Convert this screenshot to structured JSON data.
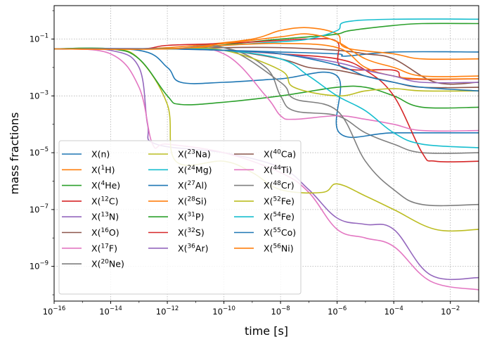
{
  "chart_data": {
    "type": "line",
    "title": "",
    "xlabel": "time [s]",
    "ylabel": "mass fractions",
    "xscale": "log",
    "yscale": "log",
    "xlim": [
      1e-16,
      0.1
    ],
    "ylim": [
      6e-11,
      1.5
    ],
    "grid": true,
    "legend_placement": "lower-left",
    "legend_columns": 3,
    "x_ticks": [
      {
        "value": 1e-16,
        "base": "10",
        "exp": "−16"
      },
      {
        "value": 1e-14,
        "base": "10",
        "exp": "−14"
      },
      {
        "value": 1e-12,
        "base": "10",
        "exp": "−12"
      },
      {
        "value": 1e-10,
        "base": "10",
        "exp": "−10"
      },
      {
        "value": 1e-08,
        "base": "10",
        "exp": "−8"
      },
      {
        "value": 1e-06,
        "base": "10",
        "exp": "−6"
      },
      {
        "value": 0.0001,
        "base": "10",
        "exp": "−4"
      },
      {
        "value": 0.01,
        "base": "10",
        "exp": "−2"
      }
    ],
    "y_ticks": [
      {
        "value": 1e-09,
        "base": "10",
        "exp": "−9"
      },
      {
        "value": 1e-07,
        "base": "10",
        "exp": "−7"
      },
      {
        "value": 1e-05,
        "base": "10",
        "exp": "−5"
      },
      {
        "value": 0.001,
        "base": "10",
        "exp": "−3"
      },
      {
        "value": 0.1,
        "base": "10",
        "exp": "−1"
      }
    ],
    "series": [
      {
        "name": "X(n)",
        "base": "X(",
        "iso": "",
        "sym": "n)",
        "color": "#1f77b4",
        "points": [
          [
            1e-16,
            0.045
          ],
          [
            1e-14,
            0.045
          ],
          [
            1e-12,
            0.045
          ],
          [
            1e-10,
            0.04
          ],
          [
            1e-08,
            0.035
          ],
          [
            1e-06,
            0.03
          ],
          [
            2e-06,
            0.025
          ],
          [
            0.0001,
            0.035
          ],
          [
            0.1,
            0.035
          ]
        ]
      },
      {
        "name": "X(1H)",
        "base": "X(",
        "iso": "1",
        "sym": "H)",
        "color": "#ff7f0e",
        "points": [
          [
            1e-16,
            0.045
          ],
          [
            1e-13,
            0.045
          ],
          [
            1e-11,
            0.06
          ],
          [
            1e-09,
            0.1
          ],
          [
            1e-08,
            0.2
          ],
          [
            1e-07,
            0.25
          ],
          [
            1e-06,
            0.15
          ],
          [
            2e-06,
            0.05
          ],
          [
            0.0001,
            0.03
          ],
          [
            0.001,
            0.02
          ],
          [
            0.1,
            0.02
          ]
        ]
      },
      {
        "name": "X(4He)",
        "base": "X(",
        "iso": "4",
        "sym": "He)",
        "color": "#2ca02c",
        "points": [
          [
            1e-16,
            0.045
          ],
          [
            1e-13,
            0.045
          ],
          [
            1e-11,
            0.05
          ],
          [
            1e-09,
            0.08
          ],
          [
            1e-08,
            0.1
          ],
          [
            1e-07,
            0.12
          ],
          [
            1e-06,
            0.15
          ],
          [
            3e-06,
            0.2
          ],
          [
            0.0001,
            0.3
          ],
          [
            0.001,
            0.35
          ],
          [
            0.1,
            0.35
          ]
        ]
      },
      {
        "name": "X(12C)",
        "base": "X(",
        "iso": "12",
        "sym": "C)",
        "color": "#d62728",
        "points": [
          [
            1e-16,
            0.045
          ],
          [
            1e-13,
            0.045
          ],
          [
            1e-12,
            0.06
          ],
          [
            1e-10,
            0.07
          ],
          [
            1e-08,
            0.09
          ],
          [
            1e-07,
            0.1
          ],
          [
            1e-06,
            0.08
          ],
          [
            1.5e-06,
            0.01
          ],
          [
            0.0001,
            0.008
          ],
          [
            0.0003,
            0.004
          ],
          [
            0.1,
            0.004
          ]
        ]
      },
      {
        "name": "X(13N)",
        "base": "X(",
        "iso": "13",
        "sym": "N)",
        "color": "#9467bd",
        "points": [
          [
            1e-16,
            0.045
          ],
          [
            1e-14,
            0.04
          ],
          [
            1e-13,
            0.01
          ],
          [
            2e-13,
            0.0001
          ],
          [
            4e-13,
            2e-05
          ],
          [
            1e-10,
            1e-05
          ],
          [
            1e-08,
            3e-06
          ],
          [
            1e-07,
            5e-07
          ],
          [
            1e-06,
            5e-08
          ],
          [
            1e-05,
            3e-08
          ],
          [
            0.0001,
            2e-08
          ],
          [
            0.002,
            5e-10
          ],
          [
            0.1,
            4e-10
          ]
        ]
      },
      {
        "name": "X(16O)",
        "base": "X(",
        "iso": "16",
        "sym": "O)",
        "color": "#8c564b",
        "points": [
          [
            1e-16,
            0.045
          ],
          [
            1e-12,
            0.045
          ],
          [
            1e-10,
            0.05
          ],
          [
            1e-08,
            0.05
          ],
          [
            1e-06,
            0.04
          ],
          [
            1e-05,
            0.03
          ],
          [
            0.0001,
            0.02
          ],
          [
            0.003,
            0.003
          ],
          [
            0.1,
            0.003
          ]
        ]
      },
      {
        "name": "X(17F)",
        "base": "X(",
        "iso": "17",
        "sym": "F)",
        "color": "#e377c2",
        "points": [
          [
            1e-16,
            0.045
          ],
          [
            1e-14,
            0.03
          ],
          [
            1e-13,
            0.002
          ],
          [
            3e-13,
            2e-05
          ],
          [
            1e-12,
            2e-05
          ],
          [
            1e-10,
            1e-05
          ],
          [
            1e-08,
            2e-06
          ],
          [
            1e-07,
            4e-07
          ],
          [
            1e-06,
            2e-08
          ],
          [
            1e-05,
            1e-08
          ],
          [
            0.0001,
            5e-09
          ],
          [
            0.002,
            3e-10
          ],
          [
            0.1,
            1.5e-10
          ]
        ]
      },
      {
        "name": "X(20Ne)",
        "base": "X(",
        "iso": "20",
        "sym": "Ne)",
        "color": "#7f7f7f",
        "points": [
          [
            1e-16,
            0.045
          ],
          [
            1e-12,
            0.045
          ],
          [
            1e-10,
            0.05
          ],
          [
            3e-09,
            0.01
          ],
          [
            1e-08,
            0.001
          ],
          [
            3e-08,
            0.0003
          ],
          [
            1e-06,
            0.0002
          ],
          [
            1e-05,
            5e-05
          ],
          [
            0.0001,
            2e-05
          ],
          [
            0.001,
            1e-05
          ],
          [
            0.1,
            1e-05
          ]
        ]
      },
      {
        "name": "X(23Na)",
        "base": "X(",
        "iso": "23",
        "sym": "Na)",
        "color": "#bcbd22",
        "points": [
          [
            1e-16,
            0.045
          ],
          [
            1e-14,
            0.045
          ],
          [
            1e-13,
            0.02
          ],
          [
            1e-12,
            0.0005
          ],
          [
            2e-12,
            5e-06
          ],
          [
            1e-10,
            5e-06
          ],
          [
            1e-09,
            2e-06
          ],
          [
            1e-08,
            5e-07
          ],
          [
            3e-07,
            4e-07
          ],
          [
            1e-06,
            8e-07
          ],
          [
            1e-05,
            3e-07
          ],
          [
            0.0001,
            1e-07
          ],
          [
            0.003,
            2e-08
          ],
          [
            0.1,
            2e-08
          ]
        ]
      },
      {
        "name": "X(24Mg)",
        "base": "X(",
        "iso": "24",
        "sym": "Mg)",
        "color": "#17becf",
        "points": [
          [
            1e-16,
            0.045
          ],
          [
            1e-12,
            0.045
          ],
          [
            1e-10,
            0.06
          ],
          [
            1e-08,
            0.08
          ],
          [
            1e-07,
            0.1
          ],
          [
            1e-06,
            0.2
          ],
          [
            2e-06,
            0.4
          ],
          [
            0.0001,
            0.5
          ],
          [
            0.1,
            0.5
          ]
        ]
      },
      {
        "name": "X(27Al)",
        "base": "X(",
        "iso": "27",
        "sym": "Al)",
        "color": "#1f77b4",
        "points": [
          [
            1e-16,
            0.045
          ],
          [
            1e-13,
            0.04
          ],
          [
            1e-12,
            0.01
          ],
          [
            3e-12,
            0.003
          ],
          [
            1e-10,
            0.003
          ],
          [
            1e-08,
            0.004
          ],
          [
            1e-06,
            0.005
          ],
          [
            1.2e-06,
            5e-05
          ],
          [
            0.0001,
            5e-05
          ],
          [
            0.1,
            5e-05
          ]
        ]
      },
      {
        "name": "X(28Si)",
        "base": "X(",
        "iso": "28",
        "sym": "Si)",
        "color": "#ff7f0e",
        "points": [
          [
            1e-16,
            0.045
          ],
          [
            1e-12,
            0.045
          ],
          [
            1e-10,
            0.06
          ],
          [
            1e-08,
            0.07
          ],
          [
            1e-06,
            0.05
          ],
          [
            1e-05,
            0.01
          ],
          [
            0.0001,
            0.005
          ],
          [
            0.001,
            0.004
          ],
          [
            0.1,
            0.004
          ]
        ]
      },
      {
        "name": "X(31P)",
        "base": "X(",
        "iso": "31",
        "sym": "P)",
        "color": "#2ca02c",
        "points": [
          [
            1e-16,
            0.045
          ],
          [
            1e-14,
            0.045
          ],
          [
            1e-13,
            0.02
          ],
          [
            1e-12,
            0.001
          ],
          [
            3e-12,
            0.0005
          ],
          [
            1e-10,
            0.0006
          ],
          [
            1e-08,
            0.001
          ],
          [
            1e-06,
            0.002
          ],
          [
            1e-05,
            0.002
          ],
          [
            0.0001,
            0.001
          ],
          [
            0.001,
            0.0004
          ],
          [
            0.1,
            0.0004
          ]
        ]
      },
      {
        "name": "X(32S)",
        "base": "X(",
        "iso": "32",
        "sym": "S)",
        "color": "#d62728",
        "points": [
          [
            1e-16,
            0.045
          ],
          [
            1e-12,
            0.045
          ],
          [
            1e-10,
            0.04
          ],
          [
            1e-08,
            0.03
          ],
          [
            1e-06,
            0.02
          ],
          [
            1e-05,
            0.008
          ],
          [
            0.0001,
            0.001
          ],
          [
            0.001,
            1e-05
          ],
          [
            0.003,
            5e-06
          ],
          [
            0.1,
            5e-06
          ]
        ]
      },
      {
        "name": "X(36Ar)",
        "base": "X(",
        "iso": "36",
        "sym": "Ar)",
        "color": "#9467bd",
        "points": [
          [
            1e-16,
            0.045
          ],
          [
            1e-12,
            0.045
          ],
          [
            1e-10,
            0.04
          ],
          [
            1e-08,
            0.03
          ],
          [
            1e-06,
            0.015
          ],
          [
            1e-05,
            0.008
          ],
          [
            0.0001,
            0.005
          ],
          [
            0.001,
            0.003
          ],
          [
            0.1,
            0.003
          ]
        ]
      },
      {
        "name": "X(40Ca)",
        "base": "X(",
        "iso": "40",
        "sym": "Ca)",
        "color": "#8c564b",
        "points": [
          [
            1e-16,
            0.045
          ],
          [
            1e-12,
            0.045
          ],
          [
            1e-10,
            0.04
          ],
          [
            1e-08,
            0.02
          ],
          [
            1e-07,
            0.01
          ],
          [
            1e-06,
            0.008
          ],
          [
            1e-05,
            0.005
          ],
          [
            0.0001,
            0.003
          ],
          [
            0.001,
            0.002
          ],
          [
            0.1,
            0.002
          ]
        ]
      },
      {
        "name": "X(44Ti)",
        "base": "X(",
        "iso": "44",
        "sym": "Ti)",
        "color": "#e377c2",
        "points": [
          [
            1e-16,
            0.045
          ],
          [
            1e-12,
            0.045
          ],
          [
            1e-10,
            0.03
          ],
          [
            3e-09,
            0.001
          ],
          [
            1e-08,
            0.0002
          ],
          [
            3e-08,
            0.00015
          ],
          [
            1e-06,
            0.0002
          ],
          [
            1e-05,
            0.00015
          ],
          [
            0.0001,
            0.0001
          ],
          [
            0.001,
            6e-05
          ],
          [
            0.1,
            6e-05
          ]
        ]
      },
      {
        "name": "X(48Cr)",
        "base": "X(",
        "iso": "48",
        "sym": "Cr)",
        "color": "#7f7f7f",
        "points": [
          [
            1e-16,
            0.045
          ],
          [
            1e-12,
            0.045
          ],
          [
            1e-10,
            0.05
          ],
          [
            1e-08,
            0.003
          ],
          [
            3e-08,
            0.0008
          ],
          [
            1e-06,
            0.0003
          ],
          [
            1e-05,
            5e-06
          ],
          [
            0.0001,
            5e-07
          ],
          [
            0.001,
            1.5e-07
          ],
          [
            0.1,
            1.5e-07
          ]
        ]
      },
      {
        "name": "X(52Fe)",
        "base": "X(",
        "iso": "52",
        "sym": "Fe)",
        "color": "#bcbd22",
        "points": [
          [
            1e-16,
            0.045
          ],
          [
            1e-12,
            0.045
          ],
          [
            1e-10,
            0.04
          ],
          [
            1e-08,
            0.008
          ],
          [
            3e-08,
            0.002
          ],
          [
            1e-06,
            0.001
          ],
          [
            1e-05,
            0.0015
          ],
          [
            0.0001,
            0.0018
          ],
          [
            0.001,
            0.0015
          ],
          [
            0.1,
            0.0015
          ]
        ]
      },
      {
        "name": "X(54Fe)",
        "base": "X(",
        "iso": "54",
        "sym": "Fe)",
        "color": "#17becf",
        "points": [
          [
            1e-16,
            0.045
          ],
          [
            1e-12,
            0.045
          ],
          [
            1e-10,
            0.04
          ],
          [
            1e-08,
            0.02
          ],
          [
            1e-07,
            0.005
          ],
          [
            1e-06,
            0.001
          ],
          [
            1e-05,
            0.0003
          ],
          [
            0.0001,
            5e-05
          ],
          [
            0.001,
            2e-05
          ],
          [
            0.1,
            1.5e-05
          ]
        ]
      },
      {
        "name": "X(55Co)",
        "base": "X(",
        "iso": "55",
        "sym": "Co)",
        "color": "#1f77b4",
        "points": [
          [
            1e-16,
            0.045
          ],
          [
            1e-12,
            0.045
          ],
          [
            1e-10,
            0.04
          ],
          [
            1e-08,
            0.03
          ],
          [
            1e-06,
            0.012
          ],
          [
            1e-05,
            0.005
          ],
          [
            0.0001,
            0.003
          ],
          [
            0.001,
            0.002
          ],
          [
            0.1,
            0.0015
          ]
        ]
      },
      {
        "name": "X(56Ni)",
        "base": "X(",
        "iso": "56",
        "sym": "Ni)",
        "color": "#ff7f0e",
        "points": [
          [
            1e-16,
            0.045
          ],
          [
            1e-12,
            0.045
          ],
          [
            1e-10,
            0.07
          ],
          [
            1e-08,
            0.12
          ],
          [
            1e-07,
            0.15
          ],
          [
            1e-06,
            0.08
          ],
          [
            1e-05,
            0.02
          ],
          [
            0.0001,
            0.01
          ],
          [
            0.001,
            0.005
          ],
          [
            0.1,
            0.005
          ]
        ]
      }
    ]
  }
}
